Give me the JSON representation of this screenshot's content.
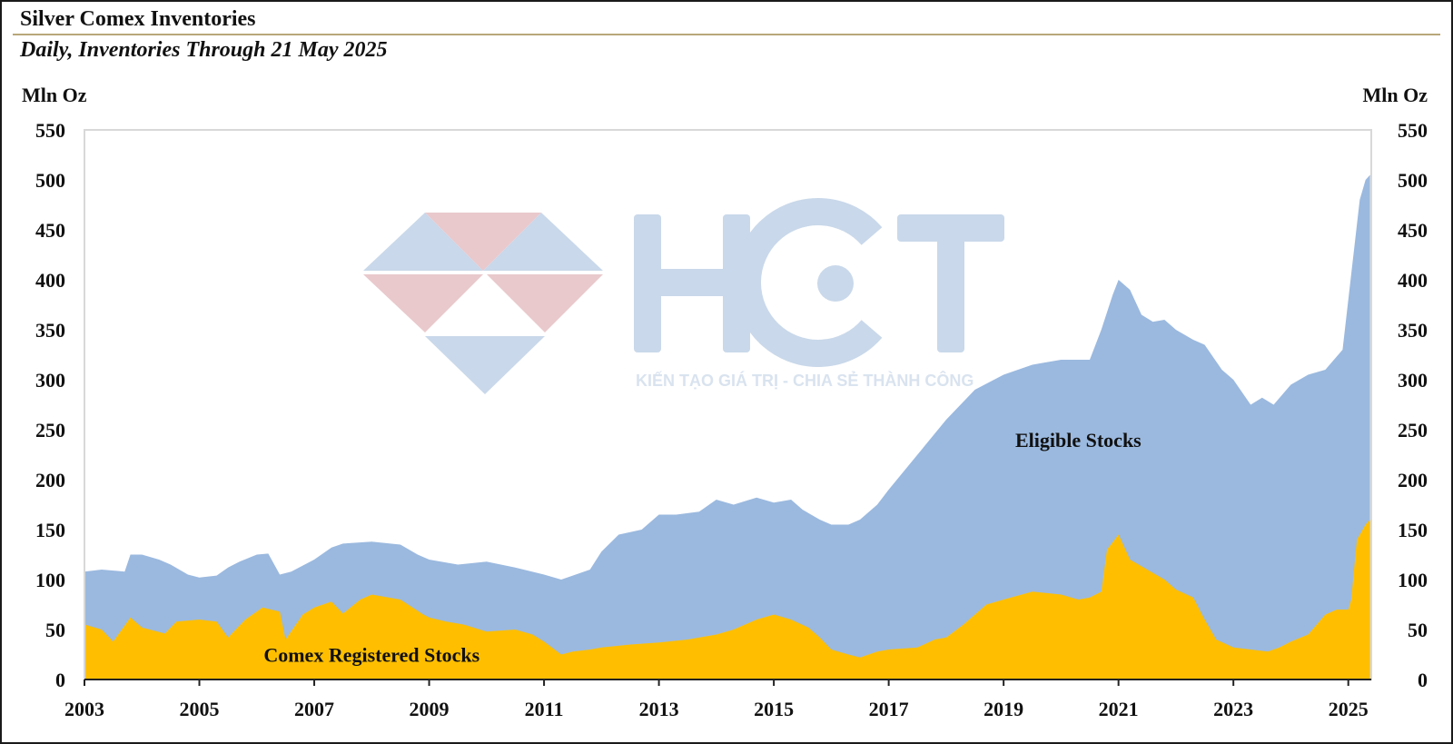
{
  "header": {
    "title": "Silver Comex Inventories",
    "subtitle": "Daily, Inventories Through 21 May 2025"
  },
  "watermark": {
    "brand": "HCT",
    "tagline": "KIẾN TẠO GIÁ TRỊ - CHIA SẺ THÀNH CÔNG",
    "colors": {
      "blue": "#c9d8ea",
      "red": "#e9c9cc"
    }
  },
  "chart_data": {
    "type": "area",
    "stacked": false,
    "title": "Silver Comex Inventories",
    "subtitle": "Daily, Inventories Through 21 May 2025",
    "ylabel_left": "Mln Oz",
    "ylabel_right": "Mln Oz",
    "ylim": [
      0,
      550
    ],
    "yticks": [
      0,
      50,
      100,
      150,
      200,
      250,
      300,
      350,
      400,
      450,
      500,
      550
    ],
    "xlim": [
      2003,
      2025.4
    ],
    "xticks": [
      2003,
      2005,
      2007,
      2009,
      2011,
      2013,
      2015,
      2017,
      2019,
      2021,
      2023,
      2025
    ],
    "grid": false,
    "colors": {
      "eligible": "#9bb9df",
      "registered": "#ffbf00"
    },
    "annotations": [
      {
        "text": "Eligible Stocks",
        "x": 2020.3,
        "y": 240
      },
      {
        "text": "Comex Registered Stocks",
        "x": 2008.0,
        "y": 25
      }
    ],
    "series": [
      {
        "name": "Eligible Stocks",
        "x": [
          2003.0,
          2003.3,
          2003.7,
          2003.8,
          2004.0,
          2004.3,
          2004.5,
          2004.8,
          2005.0,
          2005.3,
          2005.5,
          2005.7,
          2006.0,
          2006.2,
          2006.4,
          2006.6,
          2007.0,
          2007.3,
          2007.5,
          2008.0,
          2008.5,
          2008.8,
          2009.0,
          2009.5,
          2010.0,
          2010.5,
          2011.0,
          2011.3,
          2011.5,
          2011.8,
          2012.0,
          2012.3,
          2012.7,
          2013.0,
          2013.3,
          2013.7,
          2014.0,
          2014.3,
          2014.7,
          2015.0,
          2015.3,
          2015.5,
          2015.8,
          2016.0,
          2016.3,
          2016.5,
          2016.8,
          2017.0,
          2017.5,
          2018.0,
          2018.5,
          2019.0,
          2019.5,
          2020.0,
          2020.5,
          2020.7,
          2020.9,
          2021.0,
          2021.2,
          2021.4,
          2021.6,
          2021.8,
          2022.0,
          2022.3,
          2022.5,
          2022.8,
          2023.0,
          2023.3,
          2023.5,
          2023.7,
          2024.0,
          2024.3,
          2024.6,
          2024.9,
          2025.0,
          2025.1,
          2025.2,
          2025.3,
          2025.38
        ],
        "values": [
          108,
          110,
          108,
          125,
          125,
          120,
          115,
          105,
          102,
          104,
          112,
          118,
          125,
          126,
          105,
          108,
          120,
          132,
          136,
          138,
          135,
          125,
          120,
          115,
          118,
          112,
          105,
          100,
          104,
          110,
          128,
          145,
          150,
          165,
          165,
          168,
          180,
          175,
          182,
          177,
          180,
          170,
          160,
          155,
          155,
          160,
          175,
          190,
          225,
          260,
          290,
          305,
          315,
          320,
          320,
          350,
          385,
          400,
          390,
          365,
          358,
          360,
          350,
          340,
          335,
          310,
          300,
          275,
          282,
          275,
          295,
          305,
          310,
          330,
          380,
          430,
          480,
          500,
          505
        ]
      },
      {
        "name": "Comex Registered Stocks",
        "x": [
          2003.0,
          2003.3,
          2003.5,
          2003.8,
          2004.0,
          2004.4,
          2004.6,
          2005.0,
          2005.3,
          2005.5,
          2005.8,
          2006.1,
          2006.4,
          2006.5,
          2006.8,
          2007.0,
          2007.3,
          2007.5,
          2007.8,
          2008.0,
          2008.5,
          2008.9,
          2009.0,
          2009.3,
          2009.6,
          2010.0,
          2010.5,
          2010.8,
          2011.0,
          2011.3,
          2011.5,
          2011.8,
          2012.0,
          2012.5,
          2013.0,
          2013.5,
          2014.0,
          2014.3,
          2014.7,
          2015.0,
          2015.3,
          2015.6,
          2015.8,
          2016.0,
          2016.3,
          2016.5,
          2016.8,
          2017.0,
          2017.5,
          2017.8,
          2018.0,
          2018.3,
          2018.7,
          2019.0,
          2019.5,
          2020.0,
          2020.3,
          2020.5,
          2020.7,
          2020.8,
          2021.0,
          2021.2,
          2021.5,
          2021.8,
          2022.0,
          2022.3,
          2022.5,
          2022.7,
          2023.0,
          2023.3,
          2023.6,
          2023.8,
          2024.0,
          2024.3,
          2024.6,
          2024.8,
          2025.0,
          2025.05,
          2025.15,
          2025.3,
          2025.38
        ],
        "values": [
          55,
          50,
          38,
          62,
          52,
          46,
          58,
          60,
          58,
          42,
          60,
          72,
          68,
          40,
          65,
          72,
          78,
          66,
          80,
          85,
          80,
          65,
          62,
          58,
          55,
          48,
          50,
          45,
          38,
          25,
          28,
          30,
          32,
          35,
          37,
          40,
          45,
          50,
          60,
          65,
          60,
          52,
          42,
          30,
          25,
          22,
          28,
          30,
          32,
          40,
          42,
          55,
          75,
          80,
          88,
          85,
          80,
          82,
          88,
          130,
          145,
          120,
          110,
          100,
          90,
          82,
          60,
          40,
          32,
          30,
          28,
          32,
          38,
          45,
          65,
          70,
          70,
          80,
          140,
          155,
          160
        ]
      }
    ]
  }
}
